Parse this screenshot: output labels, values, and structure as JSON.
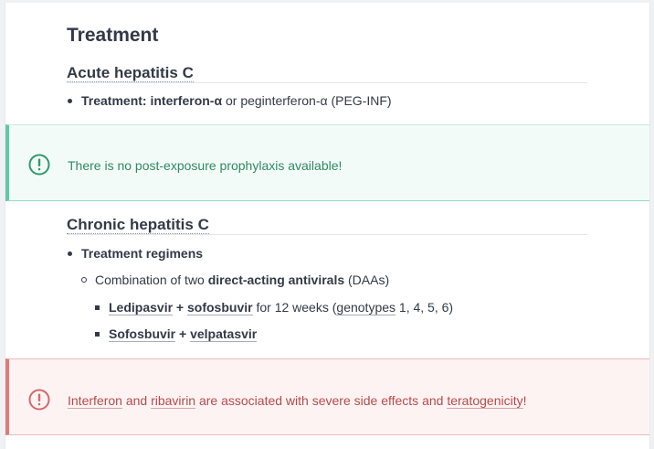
{
  "section_title": "Treatment",
  "acute": {
    "heading": "Acute hepatitis C",
    "treatment_label": "Treatment:",
    "drug1": "interferon-α",
    "connector": "or",
    "drug2_rest": "peginterferon-α (PEG-INF)"
  },
  "callout_info": {
    "icon": "exclamation-circle-icon",
    "color": "#2f8a65",
    "text": "There is no post-exposure prophylaxis available!"
  },
  "chronic": {
    "heading": "Chronic hepatitis C",
    "regimens_label": "Treatment regimens",
    "combo_prefix": "Combination of two",
    "combo_bold": "direct-acting antivirals",
    "combo_suffix": "(DAAs)",
    "regimen1": {
      "drug_a": "Ledipasvir",
      "plus": "+",
      "drug_b": "sofosbuvir",
      "duration": "for 12 weeks (",
      "genotypes_word": "genotypes",
      "genotypes_list": "1, 4, 5, 6)"
    },
    "regimen2": {
      "drug_a": "Sofosbuvir",
      "plus": "+",
      "drug_b": "velpatasvir"
    }
  },
  "callout_warning": {
    "icon": "exclamation-circle-icon",
    "color": "#b74b4b",
    "term1": "Interferon",
    "and": "and",
    "term2": "ribavirin",
    "middle": "are associated with severe side effects and",
    "term3": "teratogenicity",
    "end": "!"
  }
}
